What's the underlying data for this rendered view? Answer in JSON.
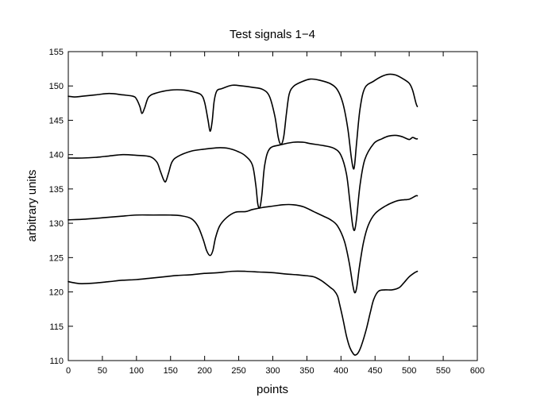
{
  "chart_data": {
    "type": "line",
    "title": "Test signals 1−4",
    "xlabel": "points",
    "ylabel": "arbitrary units",
    "xlim": [
      0,
      600
    ],
    "ylim": [
      110,
      155
    ],
    "x_ticks": [
      0,
      50,
      100,
      150,
      200,
      250,
      300,
      350,
      400,
      450,
      500,
      550,
      600
    ],
    "y_ticks": [
      110,
      115,
      120,
      125,
      130,
      135,
      140,
      145,
      150,
      155
    ],
    "grid": false,
    "legend": "none",
    "line_color": "#000000",
    "series": [
      {
        "x": [
          0,
          10,
          20,
          40,
          60,
          80,
          95,
          100,
          105,
          108,
          112,
          118,
          130,
          150,
          170,
          185,
          195,
          200,
          205,
          208,
          211,
          214,
          218,
          225,
          240,
          255,
          270,
          285,
          295,
          303,
          308,
          312,
          316,
          320,
          324,
          330,
          340,
          355,
          370,
          385,
          395,
          403,
          410,
          415,
          418,
          420,
          423,
          428,
          435,
          448,
          460,
          470,
          480,
          490,
          500,
          505,
          510,
          512
        ],
        "values": [
          148.5,
          148.4,
          148.5,
          148.7,
          148.9,
          148.7,
          148.5,
          148.1,
          147.0,
          146.0,
          146.8,
          148.4,
          149.0,
          149.4,
          149.4,
          149.1,
          148.7,
          147.6,
          145.0,
          143.4,
          144.8,
          147.8,
          149.3,
          149.6,
          150.1,
          150.0,
          149.8,
          149.5,
          148.5,
          145.6,
          142.5,
          141.5,
          142.6,
          146.0,
          148.8,
          149.9,
          150.5,
          151.0,
          150.8,
          150.3,
          149.4,
          147.4,
          143.8,
          139.7,
          138.0,
          138.5,
          141.8,
          146.7,
          149.7,
          150.7,
          151.4,
          151.7,
          151.6,
          151.1,
          150.4,
          149.4,
          147.5,
          147.0
        ]
      },
      {
        "x": [
          0,
          20,
          40,
          60,
          80,
          100,
          120,
          130,
          135,
          140,
          143,
          147,
          152,
          160,
          180,
          200,
          220,
          235,
          250,
          260,
          270,
          275,
          278,
          281,
          284,
          288,
          295,
          310,
          330,
          345,
          355,
          375,
          390,
          400,
          408,
          413,
          417,
          420,
          423,
          428,
          435,
          448,
          460,
          470,
          480,
          490,
          500,
          505,
          510,
          512
        ],
        "values": [
          139.5,
          139.5,
          139.6,
          139.8,
          140.0,
          139.9,
          139.7,
          138.9,
          137.6,
          136.3,
          136.1,
          137.3,
          138.9,
          139.7,
          140.5,
          140.8,
          141.0,
          140.9,
          140.4,
          139.8,
          138.5,
          135.6,
          132.8,
          132.3,
          134.2,
          138.4,
          140.8,
          141.4,
          141.8,
          141.8,
          141.6,
          141.3,
          140.9,
          139.9,
          137.2,
          133.2,
          129.8,
          129.0,
          130.8,
          135.6,
          139.3,
          141.6,
          142.3,
          142.7,
          142.8,
          142.6,
          142.2,
          142.5,
          142.3,
          142.3
        ]
      },
      {
        "x": [
          0,
          25,
          50,
          75,
          100,
          125,
          150,
          165,
          180,
          190,
          198,
          203,
          208,
          212,
          216,
          222,
          232,
          245,
          260,
          270,
          285,
          300,
          315,
          330,
          345,
          360,
          375,
          385,
          395,
          405,
          412,
          417,
          420,
          423,
          427,
          433,
          440,
          450,
          465,
          480,
          490,
          500,
          510,
          512
        ],
        "values": [
          130.5,
          130.6,
          130.8,
          131.0,
          131.2,
          131.2,
          131.2,
          131.1,
          130.7,
          129.6,
          127.6,
          126.0,
          125.3,
          126.0,
          127.9,
          129.6,
          130.8,
          131.6,
          131.7,
          132.0,
          132.3,
          132.5,
          132.7,
          132.7,
          132.4,
          131.7,
          131.0,
          130.5,
          129.6,
          127.4,
          124.3,
          121.2,
          119.9,
          120.6,
          123.6,
          127.2,
          129.7,
          131.4,
          132.5,
          133.2,
          133.4,
          133.5,
          134.0,
          134.0
        ]
      },
      {
        "x": [
          0,
          10,
          20,
          40,
          60,
          80,
          100,
          120,
          140,
          160,
          180,
          200,
          220,
          240,
          260,
          280,
          300,
          320,
          335,
          345,
          355,
          360,
          365,
          372,
          380,
          385,
          390,
          395,
          398,
          403,
          408,
          413,
          418,
          421,
          425,
          430,
          437,
          443,
          448,
          455,
          465,
          475,
          485,
          492,
          500,
          508,
          512
        ],
        "values": [
          121.5,
          121.3,
          121.2,
          121.3,
          121.5,
          121.7,
          121.8,
          122.0,
          122.2,
          122.4,
          122.5,
          122.7,
          122.8,
          123.0,
          123.0,
          122.9,
          122.8,
          122.6,
          122.5,
          122.4,
          122.3,
          122.2,
          122.0,
          121.6,
          121.0,
          120.6,
          120.2,
          119.4,
          118.2,
          116.0,
          113.6,
          111.9,
          111.0,
          110.8,
          111.1,
          112.2,
          114.5,
          117.0,
          118.9,
          120.1,
          120.3,
          120.3,
          120.6,
          121.3,
          122.2,
          122.8,
          123.0
        ]
      }
    ]
  }
}
